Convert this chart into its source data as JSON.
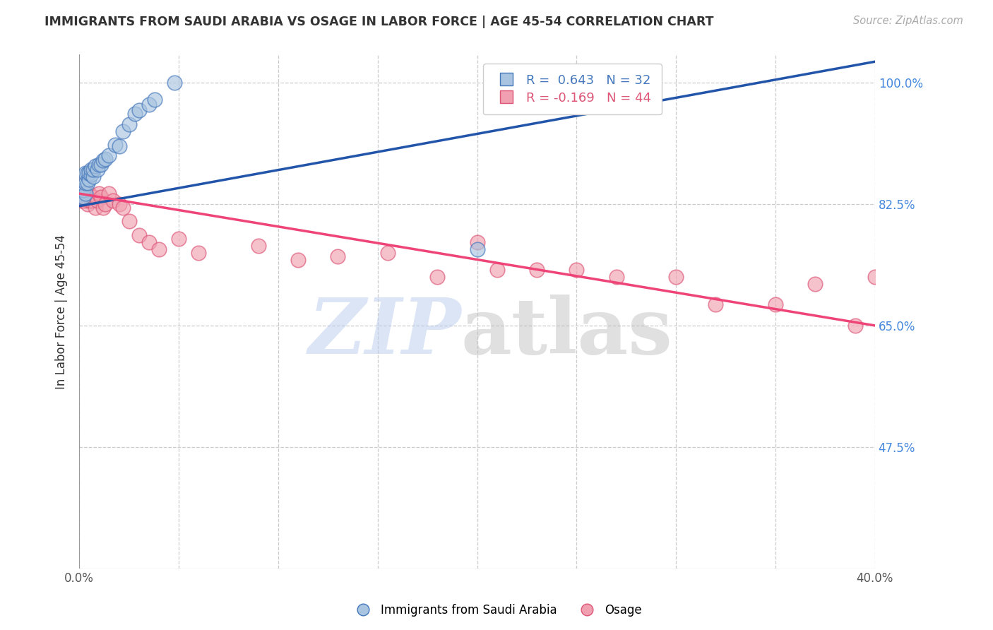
{
  "title": "IMMIGRANTS FROM SAUDI ARABIA VS OSAGE IN LABOR FORCE | AGE 45-54 CORRELATION CHART",
  "source": "Source: ZipAtlas.com",
  "ylabel": "In Labor Force | Age 45-54",
  "xlim": [
    0.0,
    0.4
  ],
  "ylim": [
    0.3,
    1.04
  ],
  "yticks": [
    0.475,
    0.65,
    0.825,
    1.0
  ],
  "ytick_labels": [
    "47.5%",
    "65.0%",
    "82.5%",
    "100.0%"
  ],
  "xticks": [
    0.0,
    0.05,
    0.1,
    0.15,
    0.2,
    0.25,
    0.3,
    0.35,
    0.4
  ],
  "xtick_labels": [
    "0.0%",
    "",
    "",
    "",
    "",
    "",
    "",
    "",
    "40.0%"
  ],
  "blue_color": "#a8c4e0",
  "blue_edge_color": "#4477bb",
  "pink_color": "#f0a0b0",
  "pink_edge_color": "#dd5577",
  "blue_line_color": "#2255aa",
  "pink_line_color": "#ee4477",
  "legend_text_blue": "R =  0.643   N = 32",
  "legend_text_pink": "R = -0.169   N = 44",
  "blue_trend_x0": 0.0,
  "blue_trend_y0": 0.822,
  "blue_trend_x1": 0.4,
  "blue_trend_y1": 1.03,
  "pink_trend_x0": 0.0,
  "pink_trend_y0": 0.84,
  "pink_trend_x1": 0.4,
  "pink_trend_y1": 0.65,
  "saudi_x": [
    0.001,
    0.001,
    0.002,
    0.002,
    0.003,
    0.003,
    0.003,
    0.004,
    0.004,
    0.005,
    0.005,
    0.006,
    0.006,
    0.007,
    0.007,
    0.008,
    0.009,
    0.01,
    0.011,
    0.012,
    0.013,
    0.015,
    0.018,
    0.02,
    0.022,
    0.025,
    0.028,
    0.03,
    0.035,
    0.038,
    0.048,
    0.2
  ],
  "saudi_y": [
    0.84,
    0.835,
    0.835,
    0.845,
    0.84,
    0.855,
    0.87,
    0.855,
    0.87,
    0.86,
    0.87,
    0.868,
    0.875,
    0.865,
    0.875,
    0.88,
    0.875,
    0.882,
    0.882,
    0.888,
    0.89,
    0.895,
    0.91,
    0.908,
    0.93,
    0.94,
    0.955,
    0.96,
    0.968,
    0.975,
    1.0,
    0.76
  ],
  "osage_x": [
    0.001,
    0.001,
    0.002,
    0.002,
    0.003,
    0.003,
    0.004,
    0.004,
    0.005,
    0.005,
    0.006,
    0.007,
    0.008,
    0.009,
    0.01,
    0.011,
    0.012,
    0.013,
    0.015,
    0.017,
    0.02,
    0.022,
    0.025,
    0.03,
    0.035,
    0.04,
    0.05,
    0.06,
    0.09,
    0.11,
    0.13,
    0.155,
    0.18,
    0.2,
    0.21,
    0.23,
    0.25,
    0.27,
    0.3,
    0.32,
    0.35,
    0.37,
    0.39,
    0.4
  ],
  "osage_y": [
    0.84,
    0.83,
    0.83,
    0.84,
    0.835,
    0.83,
    0.835,
    0.825,
    0.84,
    0.83,
    0.83,
    0.835,
    0.82,
    0.83,
    0.84,
    0.835,
    0.82,
    0.825,
    0.84,
    0.83,
    0.825,
    0.82,
    0.8,
    0.78,
    0.77,
    0.76,
    0.775,
    0.755,
    0.765,
    0.745,
    0.75,
    0.755,
    0.72,
    0.77,
    0.73,
    0.73,
    0.73,
    0.72,
    0.72,
    0.68,
    0.68,
    0.71,
    0.65,
    0.72
  ]
}
